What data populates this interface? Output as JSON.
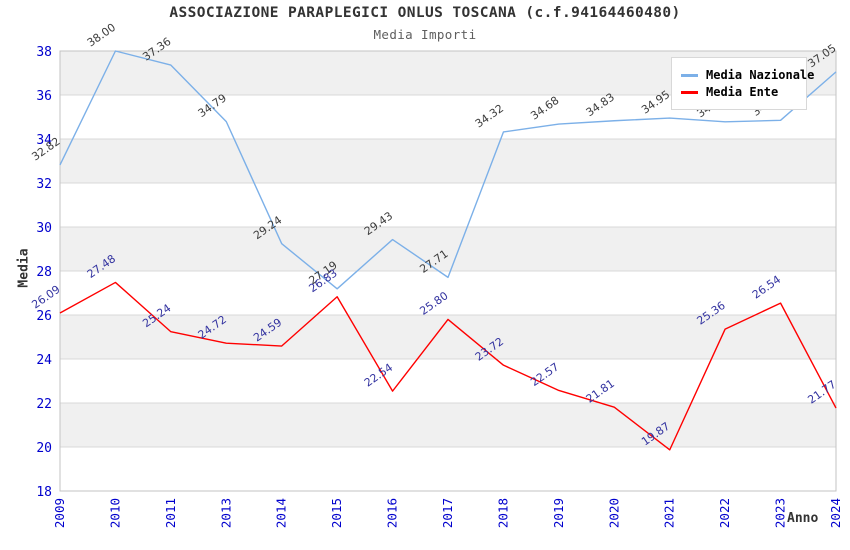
{
  "title": "ASSOCIAZIONE PARAPLEGICI ONLUS TOSCANA (c.f.94164460480)",
  "subtitle": "Media Importi",
  "axis": {
    "x_title": "Anno",
    "y_title": "Media"
  },
  "legend": {
    "position": "top-right",
    "items": [
      {
        "label": "Media Nazionale",
        "color": "#7cb0e8"
      },
      {
        "label": "Media Ente",
        "color": "#ff0000"
      }
    ]
  },
  "chart_data": {
    "type": "line",
    "title": "ASSOCIAZIONE PARAPLEGICI ONLUS TOSCANA (c.f.94164460480)",
    "subtitle": "Media Importi",
    "xlabel": "Anno",
    "ylabel": "Media",
    "ylim": [
      18,
      38
    ],
    "ytick_step": 2,
    "grid": "alternating-horizontal-bands",
    "legend_position": "top-right",
    "categories": [
      "2009",
      "2010",
      "2011",
      "2013",
      "2014",
      "2015",
      "2016",
      "2017",
      "2018",
      "2019",
      "2020",
      "2021",
      "2022",
      "2023",
      "2024"
    ],
    "series": [
      {
        "name": "Media Nazionale",
        "color": "#7cb0e8",
        "label_color": "#3c3c3c",
        "values": [
          32.82,
          38.0,
          37.36,
          34.79,
          29.24,
          27.19,
          29.43,
          27.71,
          34.32,
          34.68,
          34.83,
          34.95,
          34.78,
          34.85,
          37.05
        ]
      },
      {
        "name": "Media Ente",
        "color": "#ff0000",
        "label_color": "#3333a0",
        "values": [
          26.09,
          27.48,
          25.24,
          24.72,
          24.59,
          26.83,
          22.54,
          25.8,
          23.72,
          22.57,
          21.81,
          19.87,
          25.36,
          26.54,
          21.77
        ]
      }
    ],
    "ytick_labels": [
      "18",
      "20",
      "22",
      "24",
      "26",
      "28",
      "30",
      "32",
      "34",
      "36",
      "38"
    ]
  },
  "colors": {
    "background": "#ffffff",
    "band": "#f0f0f0",
    "gridline": "#d9d9d9",
    "plot_border": "#c3c3c3",
    "tick_label": "#0000cd",
    "title": "#333333",
    "subtitle": "#5e5e5e",
    "axis_title": "#333333",
    "legend_bg": "#ffffff",
    "legend_border": "#d8d8d8",
    "data_label_nazionale": "#3c3c3c",
    "data_label_ente": "#3333a0"
  }
}
